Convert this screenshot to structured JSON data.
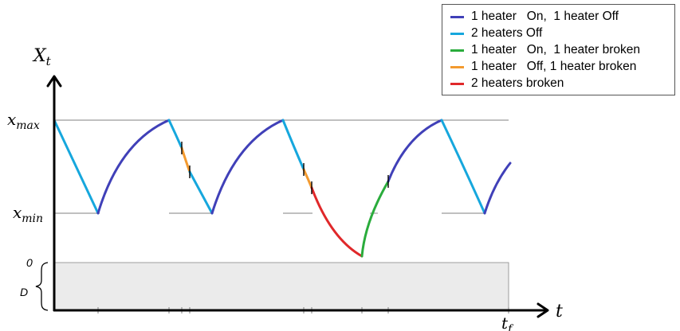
{
  "labels": {
    "y_axis": "X_t",
    "x_axis": "t",
    "x_max": "x_max",
    "x_min": "x_min",
    "zero": "0",
    "d": "D",
    "t_f": "t_f"
  },
  "colors": {
    "one_on_one_off": "#4040b8",
    "two_off": "#16a7dd",
    "one_on_one_broken": "#2aac3c",
    "one_off_one_broken": "#f39a2f",
    "two_broken": "#e0282a",
    "axis": "#000000",
    "reference_line": "#808080",
    "d_region": "#ebebeb"
  },
  "legend": [
    {
      "key": "one_on_one_off",
      "label": "1 heater   On,  1 heater Off"
    },
    {
      "key": "two_off",
      "label": "2 heaters Off"
    },
    {
      "key": "one_on_one_broken",
      "label": "1 heater   On,  1 heater broken"
    },
    {
      "key": "one_off_one_broken",
      "label": "1 heater   Off, 1 heater broken"
    },
    {
      "key": "two_broken",
      "label": "2 heaters broken"
    }
  ]
}
